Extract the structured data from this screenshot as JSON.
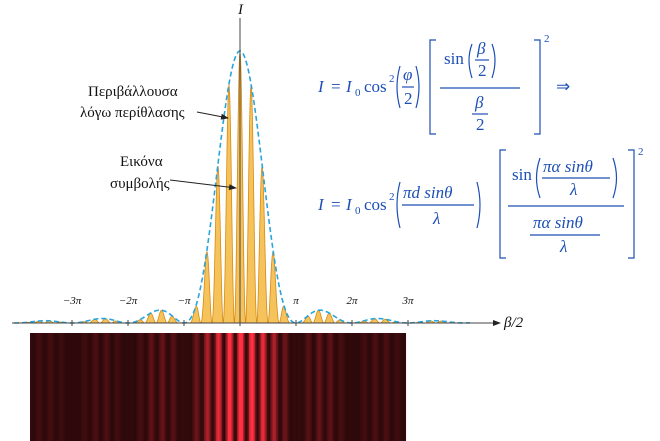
{
  "plot": {
    "y_axis_label": "I",
    "x_axis_label": "β/2",
    "x_tick_labels": [
      "−3π",
      "−2π",
      "−π",
      "π",
      "2π",
      "3π"
    ]
  },
  "annotations": {
    "envelope": [
      "Περιβάλλουσα",
      "λόγω περίθλασης"
    ],
    "interference": [
      "Εικόνα",
      "συμβολής"
    ]
  },
  "equation_1": {
    "lhs": "I",
    "eq": "=",
    "i0": "I",
    "i0_sub": "0",
    "cos": "cos",
    "cos_sup": "2",
    "phi": "φ",
    "phi_den": "2",
    "sin": "sin",
    "beta_num": "β",
    "beta_num_den": "2",
    "beta_den": "β",
    "beta_den_den": "2",
    "power": "2",
    "implies": "⇒"
  },
  "equation_2": {
    "lhs": "I",
    "eq": "=",
    "i0": "I",
    "i0_sub": "0",
    "cos": "cos",
    "cos_sup": "2",
    "arg_num": "πd sinθ",
    "arg_den": "λ",
    "sin": "sin",
    "inner_num": "πα sinθ",
    "inner_den": "λ",
    "den_num": "πα sinθ",
    "den_den": "λ",
    "power": "2"
  }
}
